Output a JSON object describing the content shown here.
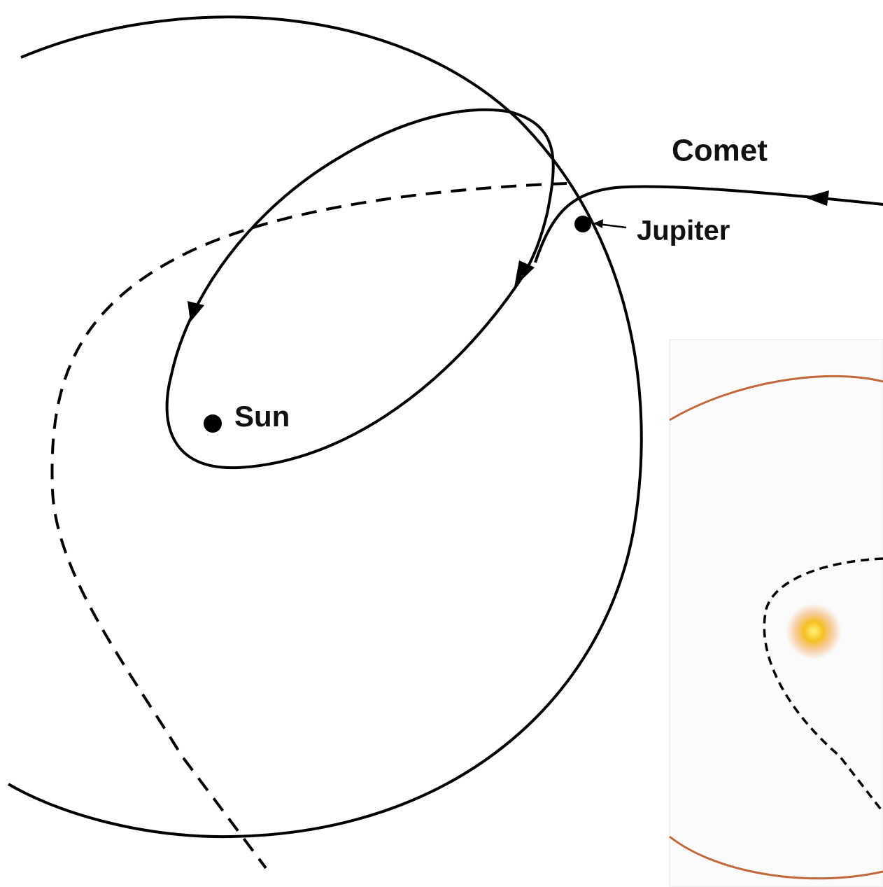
{
  "labels": {
    "comet": "Comet",
    "jupiter": "Jupiter",
    "sun": "Sun"
  }
}
